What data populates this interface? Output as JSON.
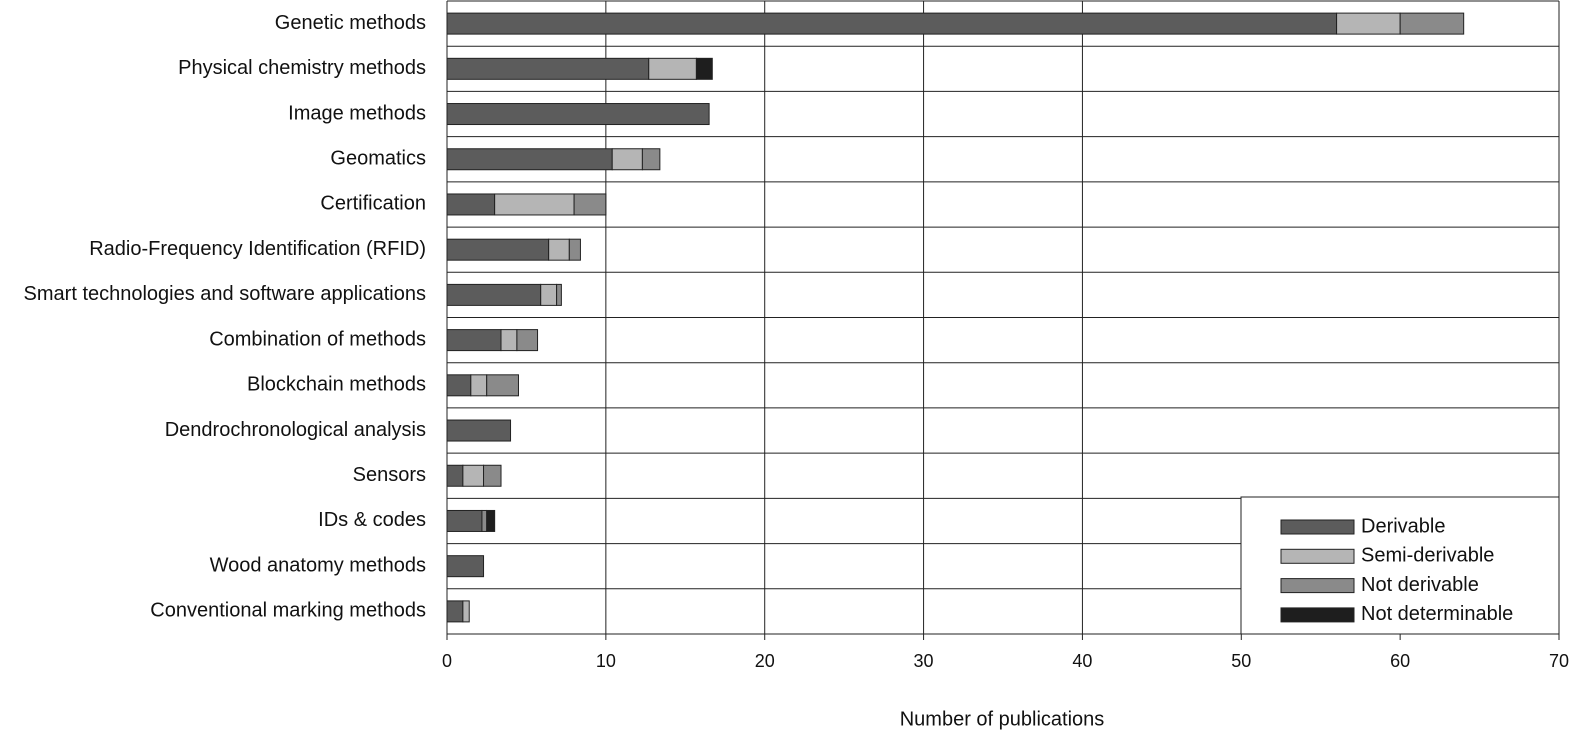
{
  "chart_data": {
    "type": "stacked-barh",
    "x_label": "Number of publications",
    "categories": [
      "Genetic methods",
      "Physical chemistry methods",
      "Image methods",
      "Geomatics",
      "Certification",
      "Radio-Frequency Identification (RFID)",
      "Smart technologies and software applications",
      "Combination of methods",
      "Blockchain methods",
      "Dendrochronological analysis",
      "Sensors",
      "IDs & codes",
      "Wood anatomy methods",
      "Conventional marking methods"
    ],
    "series": [
      {
        "name": "Derivable",
        "color": "#5c5c5c",
        "values": [
          56,
          12.7,
          16.5,
          10.4,
          3,
          6.4,
          5.9,
          3.4,
          1.5,
          4,
          1,
          2.2,
          2.3,
          1
        ]
      },
      {
        "name": "Semi-derivable",
        "color": "#b5b5b5",
        "values": [
          4,
          3,
          0,
          1.9,
          5,
          1.3,
          1,
          1,
          1,
          0,
          1.3,
          0,
          0,
          0.4
        ]
      },
      {
        "name": "Not derivable",
        "color": "#8a8a8a",
        "values": [
          4,
          0,
          0,
          1.1,
          2,
          0.7,
          0.3,
          1.3,
          2,
          0,
          1.1,
          0.3,
          0,
          0
        ]
      },
      {
        "name": "Not determinable",
        "color": "#1e1e1e",
        "values": [
          0,
          1,
          0,
          0,
          0,
          0,
          0,
          0,
          0,
          0,
          0,
          0.5,
          0,
          0
        ]
      }
    ],
    "xlim": [
      0,
      70
    ],
    "xticks": [
      0,
      10,
      20,
      30,
      40,
      50,
      60,
      70
    ],
    "grid": true,
    "legend": "lower right"
  }
}
